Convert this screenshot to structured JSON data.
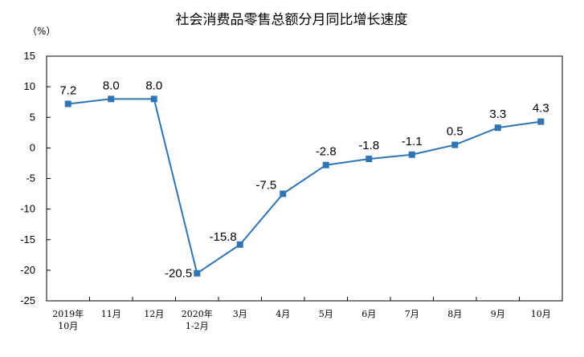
{
  "chart_data": {
    "type": "line",
    "title": "社会消费品零售总额分月同比增长速度",
    "unit_label": "（%）",
    "categories": [
      [
        "2019年",
        "10月"
      ],
      [
        "11月"
      ],
      [
        "12月"
      ],
      [
        "2020年",
        "1-2月"
      ],
      [
        "3月"
      ],
      [
        "4月"
      ],
      [
        "5月"
      ],
      [
        "6月"
      ],
      [
        "7月"
      ],
      [
        "8月"
      ],
      [
        "9月"
      ],
      [
        "10月"
      ]
    ],
    "values": [
      7.2,
      8.0,
      8.0,
      -20.5,
      -15.8,
      -7.5,
      -2.8,
      -1.8,
      -1.1,
      0.5,
      3.3,
      4.3
    ],
    "data_labels": [
      "7.2",
      "8.0",
      "8.0",
      "-20.5",
      "-15.8",
      "-7.5",
      "-2.8",
      "-1.8",
      "-1.1",
      "0.5",
      "3.3",
      "4.3"
    ],
    "yticks": [
      15,
      10,
      5,
      0,
      -5,
      -10,
      -15,
      -20,
      -25
    ],
    "ylim": [
      -25,
      15
    ],
    "grid": false,
    "line_color": "#2e75b6"
  }
}
